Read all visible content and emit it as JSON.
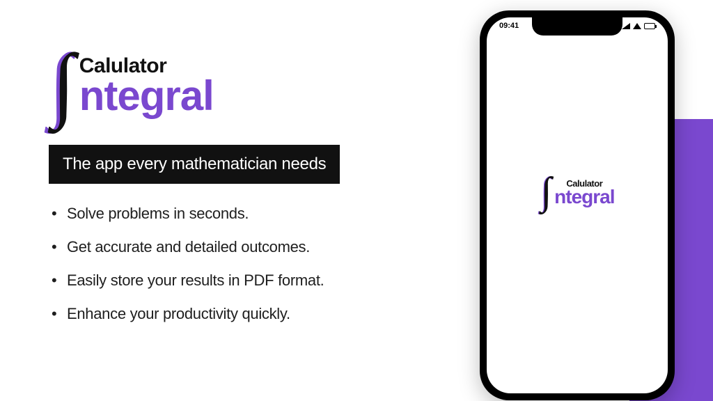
{
  "colors": {
    "accent": "#7a48cf",
    "black": "#111111",
    "white": "#ffffff"
  },
  "logo": {
    "line1": "Calulator",
    "line2": "ntegral"
  },
  "tagline": "The app every mathematician needs",
  "features": [
    "Solve problems in seconds.",
    "Get accurate and detailed outcomes.",
    "Easily store your results in PDF format.",
    "Enhance your productivity quickly."
  ],
  "phone": {
    "time": "09:41",
    "logo_line1": "Calulator",
    "logo_line2": "ntegral"
  }
}
